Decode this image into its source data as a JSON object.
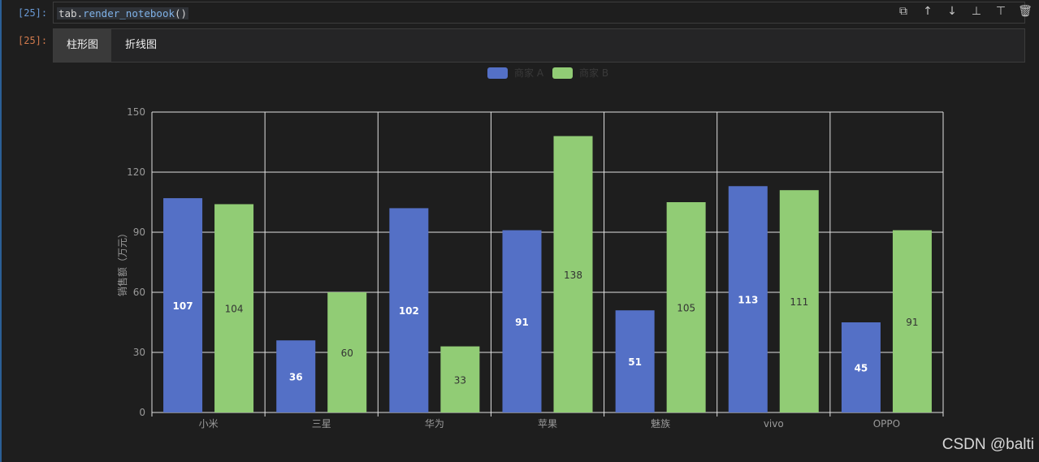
{
  "cell": {
    "in_prompt": "[25]:",
    "out_prompt": "[25]:",
    "code_object": "tab",
    "code_dot": ".",
    "code_method": "render_notebook",
    "code_parens": "()"
  },
  "toolbar": [
    {
      "name": "copy-icon",
      "glyph": "⧉"
    },
    {
      "name": "move-up-icon",
      "glyph": "↑"
    },
    {
      "name": "move-down-icon",
      "glyph": "↓"
    },
    {
      "name": "insert-above-icon",
      "glyph": "⊥"
    },
    {
      "name": "insert-below-icon",
      "glyph": "⊤"
    },
    {
      "name": "delete-icon",
      "glyph": "🗑"
    }
  ],
  "tabs": [
    {
      "label": "柱形图",
      "active": true
    },
    {
      "label": "折线图",
      "active": false
    }
  ],
  "chart_data": {
    "type": "bar",
    "categories": [
      "小米",
      "三星",
      "华为",
      "苹果",
      "魅族",
      "vivo",
      "OPPO"
    ],
    "series": [
      {
        "name": "商家 A",
        "values": [
          107,
          36,
          102,
          91,
          51,
          113,
          45
        ],
        "color": "#5470c6",
        "label_color": "#ffffff"
      },
      {
        "name": "商家 B",
        "values": [
          104,
          60,
          33,
          138,
          105,
          111,
          91
        ],
        "color": "#91cc75",
        "label_color": "#333333"
      }
    ],
    "ylabel": "销售额（万元）",
    "ylim": [
      0,
      150
    ],
    "yticks": [
      0,
      30,
      60,
      90,
      120,
      150
    ],
    "grid": true,
    "legend_position": "top-center",
    "data_labels": "inside-middle"
  },
  "colors": {
    "background": "#1e1e1e",
    "grid": "#e0e0e0",
    "axis_text": "#9a9a9a"
  },
  "watermark": "CSDN @balti"
}
